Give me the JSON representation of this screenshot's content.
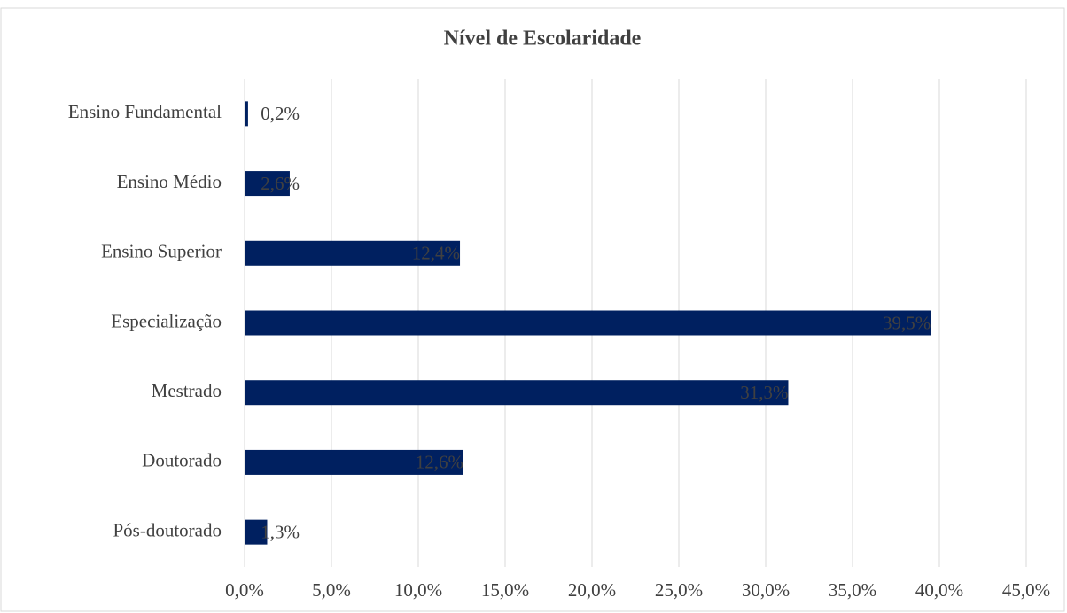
{
  "chart_data": {
    "type": "barh",
    "title": "Nível de Escolaridade",
    "categories": [
      "Ensino Fundamental",
      "Ensino Médio",
      "Ensino Superior",
      "Especialização",
      "Mestrado",
      "Doutorado",
      "Pós-doutorado"
    ],
    "values": [
      0.2,
      2.6,
      12.4,
      39.5,
      31.3,
      12.6,
      1.3
    ],
    "value_labels": [
      "0,2%",
      "2,6%",
      "12,4%",
      "39,5%",
      "31,3%",
      "12,6%",
      "1,3%"
    ],
    "color": "#002060",
    "xlim": [
      0,
      45
    ],
    "xticks": [
      {
        "value": 0,
        "label": "0,0%"
      },
      {
        "value": 5,
        "label": "5,0%"
      },
      {
        "value": 10,
        "label": "10,0%"
      },
      {
        "value": 15,
        "label": "15,0%"
      },
      {
        "value": 20,
        "label": "20,0%"
      },
      {
        "value": 25,
        "label": "25,0%"
      },
      {
        "value": 30,
        "label": "30,0%"
      },
      {
        "value": 35,
        "label": "35,0%"
      },
      {
        "value": 40,
        "label": "40,0%"
      },
      {
        "value": 45,
        "label": "45,0%"
      }
    ],
    "grid": true
  }
}
